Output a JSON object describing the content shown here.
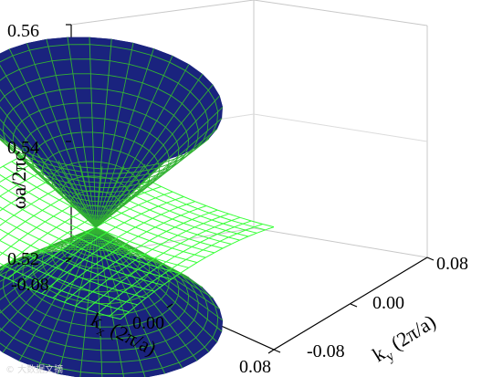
{
  "chart_data": {
    "type": "surface",
    "title": "",
    "zlabel": "ωa/2πc",
    "xlabel": {
      "main": "k",
      "sub": "x",
      "unit": " (2π/a)"
    },
    "ylabel": {
      "main": "k",
      "sub": "y",
      "unit": " (2π/a)"
    },
    "z_ticks": [
      "0.56",
      "0.54",
      "0.52"
    ],
    "x_ticks": [
      "-0.08",
      "0.00",
      "0.08"
    ],
    "y_ticks": [
      "0.08",
      "0.00",
      "-0.08"
    ],
    "xlim": [
      -0.08,
      0.08
    ],
    "ylim": [
      -0.08,
      0.08
    ],
    "zlim": [
      0.52,
      0.56
    ],
    "dirac_point": {
      "kx": 0.0,
      "ky": 0.0,
      "z": 0.541
    },
    "bands": [
      {
        "name": "upper cone",
        "shape": "cone-up",
        "apex_z": 0.541,
        "edge_z": 0.5625,
        "fill": "#1a237e",
        "mesh": "#33b233"
      },
      {
        "name": "flat band",
        "shape": "sheet",
        "center_z": 0.541,
        "corner_z": [
          0.538,
          0.544
        ],
        "fill": "none",
        "mesh": "#39ff39"
      },
      {
        "name": "lower cone",
        "shape": "cone-down",
        "apex_z": 0.541,
        "edge_z": 0.526,
        "fill": "#1a237e",
        "mesh": "#33b233"
      }
    ],
    "grid": true
  },
  "watermark": "© 大数据文摘"
}
